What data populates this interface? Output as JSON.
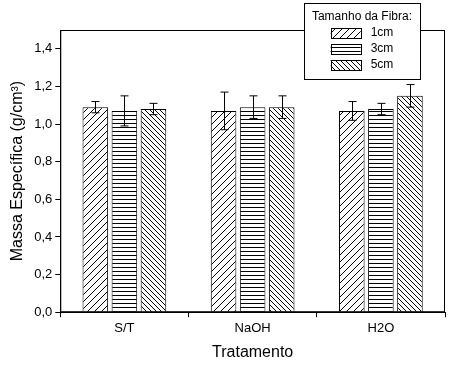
{
  "chart_data": {
    "type": "bar",
    "x_label": "Tratamento",
    "y_label": "Massa Específica (g/cm³)",
    "legend_title": "Tamanho da Fibra:",
    "categories": [
      "S/T",
      "NaOH",
      "H2O"
    ],
    "series": [
      {
        "name": "1cm",
        "color": "#000000",
        "values": [
          1.09,
          1.07,
          1.07
        ],
        "errors": [
          0.03,
          0.1,
          0.05
        ]
      },
      {
        "name": "3cm",
        "color": "#000000",
        "values": [
          1.07,
          1.09,
          1.08
        ],
        "errors": [
          0.08,
          0.06,
          0.03
        ]
      },
      {
        "name": "5cm",
        "color": "#000000",
        "values": [
          1.08,
          1.09,
          1.15
        ],
        "errors": [
          0.03,
          0.06,
          0.06
        ]
      }
    ],
    "ylim": [
      0,
      1.5
    ],
    "yticks": [
      {
        "value": 0,
        "label": "0,0"
      },
      {
        "value": 0.2,
        "label": "0,2"
      },
      {
        "value": 0.4,
        "label": "0,4"
      },
      {
        "value": 0.6,
        "label": "0,6"
      },
      {
        "value": 0.8,
        "label": "0,8"
      },
      {
        "value": 1.0,
        "label": "1,0"
      },
      {
        "value": 1.2,
        "label": "1,2"
      },
      {
        "value": 1.4,
        "label": "1,4"
      }
    ],
    "grid": false,
    "legend": "upper right"
  }
}
